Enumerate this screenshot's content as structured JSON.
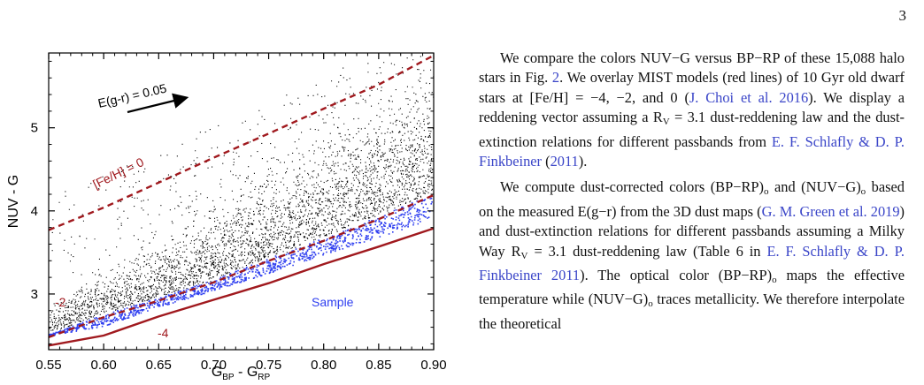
{
  "page_number": "3",
  "chart_data": {
    "type": "scatter",
    "xlabel": "G",
    "xlabel_sub_1": "BP",
    "xlabel_minus": " - G",
    "xlabel_sub_2": "RP",
    "ylabel": "NUV - G",
    "xlim": [
      0.55,
      0.9
    ],
    "ylim": [
      2.33,
      5.9
    ],
    "x_ticks": [
      "0.55",
      "0.60",
      "0.65",
      "0.70",
      "0.75",
      "0.80",
      "0.85",
      "0.90"
    ],
    "y_ticks": [
      "3",
      "4",
      "5"
    ],
    "reddening_vector_label": "E(g-r) = 0.05",
    "sample_label": "Sample",
    "curves": [
      {
        "label": "[Fe/H] = 0",
        "style": "dashed",
        "color": "#a0191e",
        "x": [
          0.55,
          0.6,
          0.65,
          0.7,
          0.75,
          0.8,
          0.85,
          0.9
        ],
        "y": [
          3.77,
          4.04,
          4.34,
          4.64,
          4.93,
          5.23,
          5.52,
          5.87
        ]
      },
      {
        "label": "-2",
        "style": "dashed",
        "color": "#a0191e",
        "x": [
          0.55,
          0.6,
          0.65,
          0.7,
          0.75,
          0.8,
          0.85,
          0.9
        ],
        "y": [
          2.48,
          2.72,
          2.92,
          3.14,
          3.4,
          3.64,
          3.9,
          4.19
        ]
      },
      {
        "label": "-4",
        "style": "solid",
        "color": "#a0191e",
        "x": [
          0.55,
          0.6,
          0.65,
          0.7,
          0.75,
          0.8,
          0.85,
          0.9
        ],
        "y": [
          2.38,
          2.5,
          2.73,
          2.93,
          3.13,
          3.36,
          3.57,
          3.79
        ]
      }
    ],
    "series": [
      {
        "name": "halo stars",
        "color": "#000000"
      },
      {
        "name": "Sample",
        "color": "#2f3ff0"
      }
    ],
    "grid": false
  },
  "text": {
    "p1": "We compare the colors NUV−G versus BP−RP of these 15,088 halo stars in Fig. ",
    "p1_fig": "2",
    "p1_b": ". We overlay MIST models (red lines) of 10 Gyr old dwarf stars at [Fe/H] = −4, −2, and 0 (",
    "p1_cite1": "J. Choi et al. 2016",
    "p1_c": "). We display a reddening vector assuming a R",
    "p1_sub": "V",
    "p1_d": " = 3.1 dust-reddening law and the dust-extinction relations for different passbands from ",
    "p1_cite2": "E. F. Schlafly & D. P. Finkbeiner",
    "p1_e": " (",
    "p1_cite2_year": "2011",
    "p1_f": ").",
    "p2_a": "We compute dust-corrected colors (BP−RP)",
    "p2_sub_o1": "o",
    "p2_b": " and (NUV−G)",
    "p2_sub_o2": "o",
    "p2_c": " based on the measured E(g−r) from the 3D dust maps (",
    "p2_cite1": "G. M. Green et al. 2019",
    "p2_d": ") and dust-extinction relations for different passbands assuming a Milky Way R",
    "p2_sub_v": "V",
    "p2_e": " = 3.1 dust-reddening law (Table 6 in ",
    "p2_cite2": "E. F. Schlafly & D. P. Finkbeiner 2011",
    "p2_f": "). The optical color (BP−RP)",
    "p2_sub_o3": "o",
    "p2_g": " maps the effective temperature while (NUV−G)",
    "p2_sub_o4": "o",
    "p2_h": " traces metallicity. We therefore interpolate the theoretical"
  }
}
